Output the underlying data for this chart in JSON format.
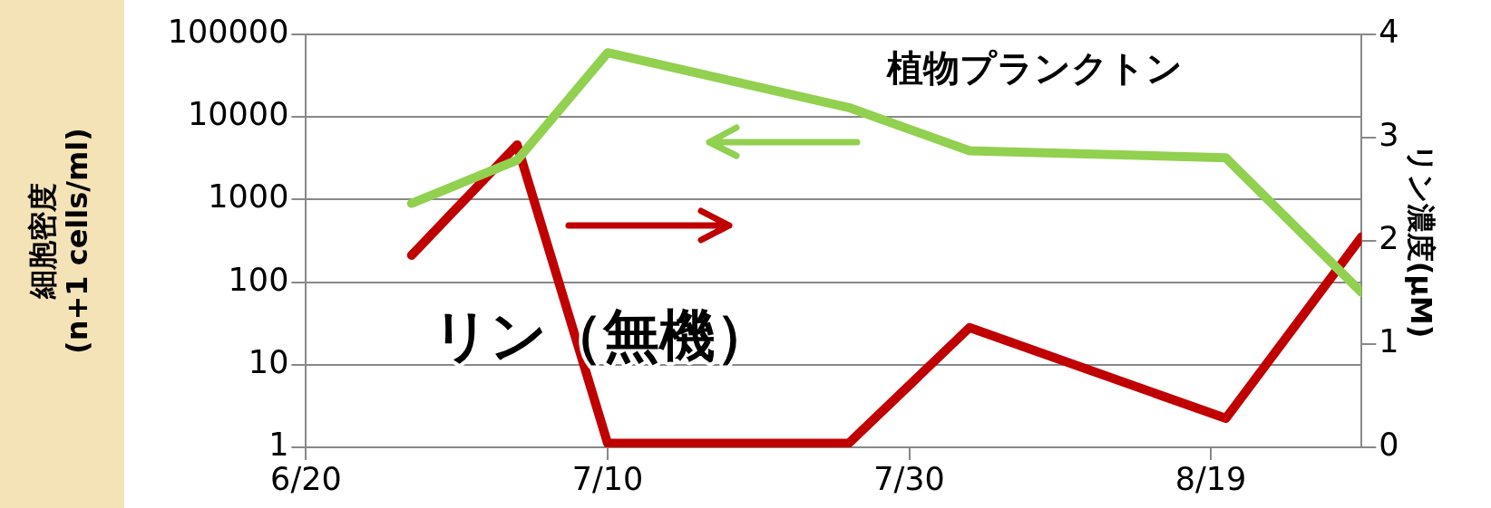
{
  "chart_data": {
    "type": "line",
    "x": [
      "--06-27",
      "--07-04",
      "--07-10",
      "--07-26",
      "--08-03",
      "--08-20",
      "--08-29"
    ],
    "series": [
      {
        "name": "植物プランクトン",
        "color": "#92d050",
        "values": [
          900,
          3000,
          60000,
          13000,
          3900,
          3200,
          75
        ]
      },
      {
        "name": "リン（無機）",
        "color": "#c00000",
        "axis": "y2",
        "values": [
          1.86,
          2.93,
          0.04,
          0.04,
          1.16,
          0.28,
          2.04
        ]
      }
    ],
    "xlim": [
      "--06-20",
      "--08-29"
    ],
    "xticks": [
      {
        "value": "--06-20",
        "label": "6/20"
      },
      {
        "value": "--07-10",
        "label": "7/10"
      },
      {
        "value": "--07-30",
        "label": "7/30"
      },
      {
        "value": "--08-19",
        "label": "8/19"
      }
    ],
    "ylim": [
      1,
      100000
    ],
    "yticks": [
      1,
      10,
      100,
      1000,
      10000,
      100000
    ],
    "y2lim": [
      0,
      4
    ],
    "y2ticks": [
      0,
      1,
      2,
      3,
      4
    ],
    "ylabel": "細胞密度\n(n+1 cells/ml)",
    "y2label": "リン濃度(μM)",
    "log": "y",
    "grid": "y",
    "legend": false,
    "marker": "none",
    "line_style": "solid"
  }
}
